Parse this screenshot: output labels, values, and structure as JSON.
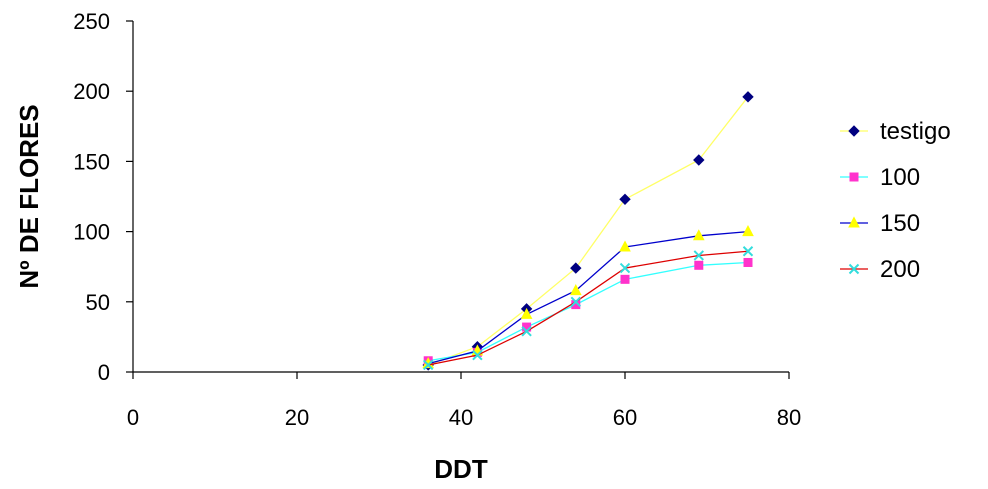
{
  "chart_data": {
    "type": "line",
    "title": "",
    "xlabel": "DDT",
    "ylabel": "Nº DE FLORES",
    "xlim": [
      0,
      80
    ],
    "ylim": [
      0,
      250
    ],
    "xticks": [
      0,
      20,
      40,
      60,
      80
    ],
    "yticks": [
      0,
      50,
      100,
      150,
      200,
      250
    ],
    "grid": false,
    "legend_position": "right",
    "series": [
      {
        "name": "testigo",
        "line_color": "#ffff66",
        "marker_color": "#000080",
        "marker": "diamond",
        "points": [
          [
            36,
            5
          ],
          [
            42,
            18
          ],
          [
            48,
            45
          ],
          [
            54,
            74
          ],
          [
            60,
            123
          ],
          [
            69,
            151
          ],
          [
            75,
            196
          ]
        ]
      },
      {
        "name": "100",
        "line_color": "#33ffff",
        "marker_color": "#ff33cc",
        "marker": "square",
        "points": [
          [
            36,
            8
          ],
          [
            42,
            14
          ],
          [
            48,
            32
          ],
          [
            54,
            48
          ],
          [
            60,
            66
          ],
          [
            69,
            76
          ],
          [
            75,
            78
          ]
        ]
      },
      {
        "name": "150",
        "line_color": "#0000cc",
        "marker_color": "#ffff00",
        "marker": "triangle",
        "points": [
          [
            36,
            6
          ],
          [
            42,
            15
          ],
          [
            48,
            41
          ],
          [
            54,
            58
          ],
          [
            60,
            89
          ],
          [
            69,
            97
          ],
          [
            75,
            100
          ]
        ]
      },
      {
        "name": "200",
        "line_color": "#dd0000",
        "marker_color": "#33dddd",
        "marker": "x",
        "points": [
          [
            36,
            5
          ],
          [
            42,
            12
          ],
          [
            48,
            29
          ],
          [
            54,
            50
          ],
          [
            60,
            74
          ],
          [
            69,
            83
          ],
          [
            75,
            86
          ]
        ]
      }
    ]
  }
}
